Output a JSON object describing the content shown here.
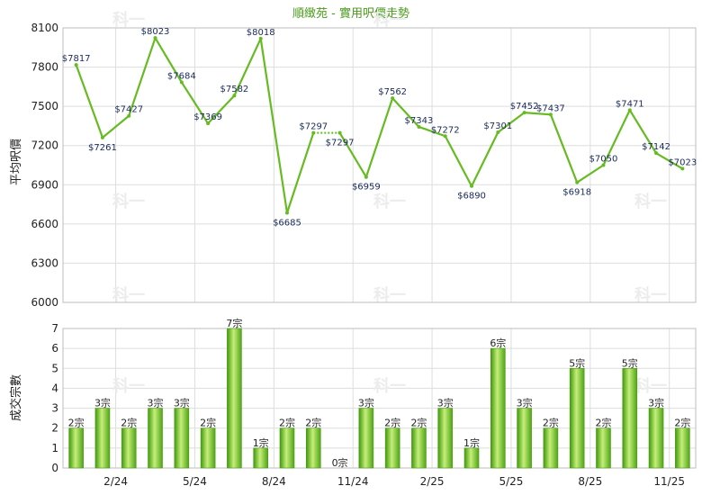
{
  "chart_data": [
    {
      "type": "line",
      "title": "順緻苑 - 實用呎價走勢",
      "ylabel": "平均呎價",
      "ylim": [
        6000,
        8100
      ],
      "yticks": [
        6000,
        6300,
        6600,
        6900,
        7200,
        7500,
        7800,
        8100
      ],
      "grid": true,
      "x_tick_labels": [
        "2/24",
        "5/24",
        "8/24",
        "11/24",
        "2/25",
        "5/25",
        "8/25",
        "11/25"
      ],
      "x_tick_positions": [
        2,
        5,
        8,
        11,
        14,
        17,
        20,
        23
      ],
      "series": [
        {
          "values": [
            7817,
            7261,
            7427,
            8023,
            7684,
            7369,
            7582,
            8018,
            6685,
            7297,
            7297,
            6959,
            7562,
            7343,
            7272,
            6890,
            7301,
            7452,
            7437,
            6918,
            7050,
            7471,
            7142,
            7023
          ],
          "labels": [
            "$7817",
            "$7261",
            "$7427",
            "$8023",
            "$7684",
            "$7369",
            "$7582",
            "$8018",
            "$6685",
            "$7297",
            "$7297",
            "$6959",
            "$7562",
            "$7343",
            "$7272",
            "$6890",
            "$7301",
            "$7452",
            "$7437",
            "$6918",
            "$7050",
            "$7471",
            "$7142",
            "$7023"
          ]
        }
      ],
      "carried_forward_segment": [
        9,
        10
      ]
    },
    {
      "type": "bar",
      "ylabel": "成交宗數",
      "ylim": [
        0,
        7
      ],
      "yticks": [
        0,
        1,
        2,
        3,
        4,
        5,
        6,
        7
      ],
      "grid": true,
      "x_tick_labels": [
        "2/24",
        "5/24",
        "8/24",
        "11/24",
        "2/25",
        "5/25",
        "8/25",
        "11/25"
      ],
      "x_tick_positions": [
        2,
        5,
        8,
        11,
        14,
        17,
        20,
        23
      ],
      "values": [
        2,
        3,
        2,
        3,
        3,
        2,
        7,
        1,
        2,
        2,
        0,
        3,
        2,
        2,
        3,
        1,
        6,
        3,
        2,
        5,
        2,
        5,
        3,
        2
      ],
      "labels": [
        "2宗",
        "3宗",
        "2宗",
        "3宗",
        "3宗",
        "2宗",
        "7宗",
        "1宗",
        "2宗",
        "2宗",
        "0宗",
        "3宗",
        "2宗",
        "2宗",
        "3宗",
        "1宗",
        "6宗",
        "3宗",
        "2宗",
        "5宗",
        "2宗",
        "5宗",
        "3宗",
        "2宗"
      ]
    }
  ],
  "colors": {
    "line": "#66bb22",
    "bar_light": "#c6ee7a",
    "bar_dark": "#3f9a0c",
    "grid": "#dddddd",
    "title": "#4a9a1a",
    "data_label": "#1a2a5a"
  },
  "watermark": "科一"
}
